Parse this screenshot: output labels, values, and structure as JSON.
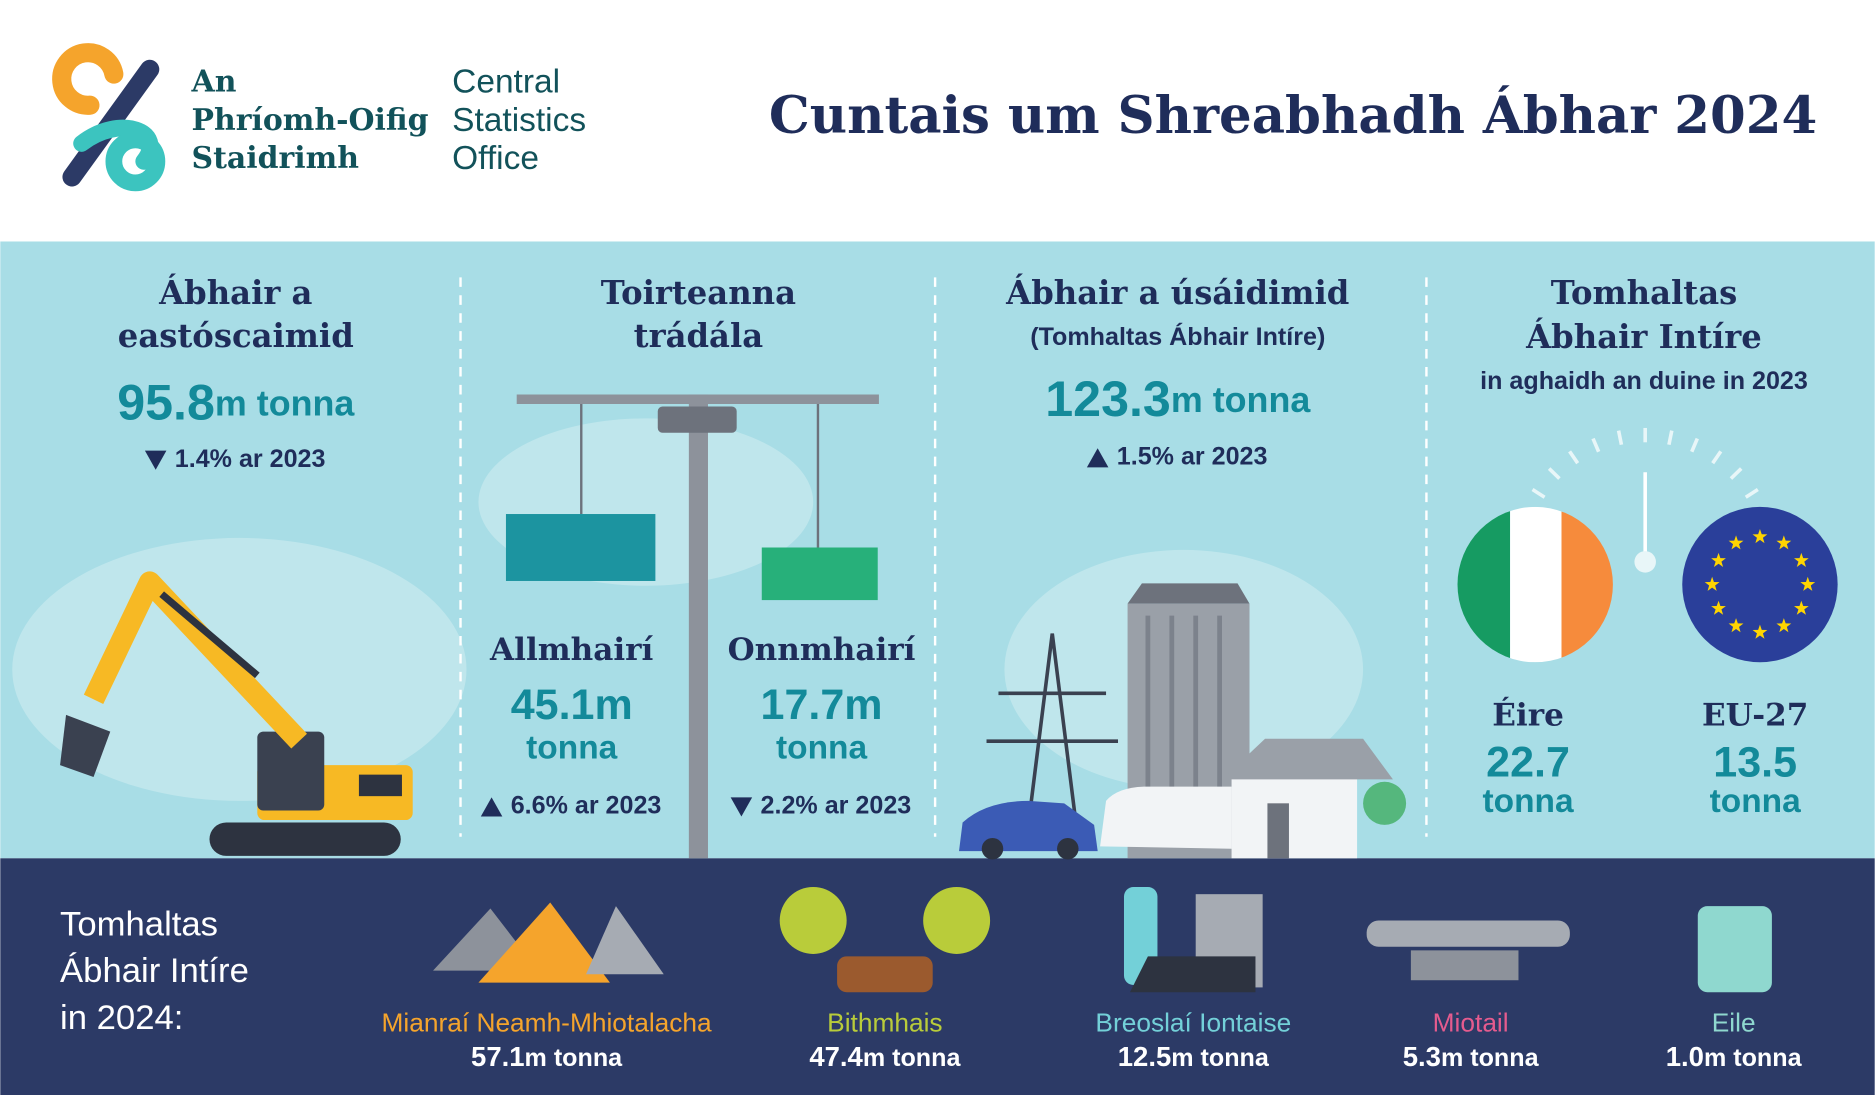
{
  "header": {
    "logo_irish": [
      "An",
      "Phríomh-Oifig",
      "Staidrimh"
    ],
    "logo_english": [
      "Central",
      "Statistics",
      "Office"
    ],
    "title": "Cuntais um Shreabhadh Ábhar 2024"
  },
  "extraction": {
    "title": [
      "Ábhair a",
      "eastóscaimid"
    ],
    "value": "95.8",
    "unit": "m tonna",
    "trend": "down",
    "change": "1.4% ar 2023"
  },
  "trade": {
    "title": [
      "Toirteanna",
      "trádála"
    ],
    "flows": [
      {
        "label": "Allmhairí",
        "value": "45.1m",
        "unit": "tonna",
        "trend": "up",
        "change": "6.6% ar 2023"
      },
      {
        "label": "Onnmhairí",
        "value": "17.7m",
        "unit": "tonna",
        "trend": "down",
        "change": "2.2% ar 2023"
      }
    ]
  },
  "use": {
    "title": "Ábhair a úsáidimid",
    "subtitle": "(Tomhaltas Ábhair Intíre)",
    "value": "123.3",
    "unit": "m tonna",
    "trend": "up",
    "change": "1.5% ar 2023"
  },
  "per_person": {
    "title": [
      "Tomhaltas",
      "Ábhair Intíre"
    ],
    "subtitle": "in aghaidh an duine in 2023",
    "regions": [
      {
        "label": "Éire",
        "value": "22.7",
        "unit": "tonna"
      },
      {
        "label": "EU-27",
        "value": "13.5",
        "unit": "tonna"
      }
    ]
  },
  "breakdown": {
    "title": [
      "Tomhaltas",
      "Ábhair Intíre",
      "in 2024:"
    ],
    "items": [
      {
        "name": "Mianraí Neamh-Mhiotalacha",
        "value": "57.1",
        "unit": "m tonna",
        "color": "#f5a42c"
      },
      {
        "name": "Bithmhais",
        "value": "47.4",
        "unit": "m tonna",
        "color": "#b9cc3a"
      },
      {
        "name": "Breoslaí Iontaise",
        "value": "12.5",
        "unit": "m tonna",
        "color": "#73d0d8"
      },
      {
        "name": "Miotail",
        "value": "5.3",
        "unit": "m tonna",
        "color": "#e55b8e"
      },
      {
        "name": "Eile",
        "value": "1.0",
        "unit": "m tonna",
        "color": "#8fd8cf"
      }
    ]
  }
}
